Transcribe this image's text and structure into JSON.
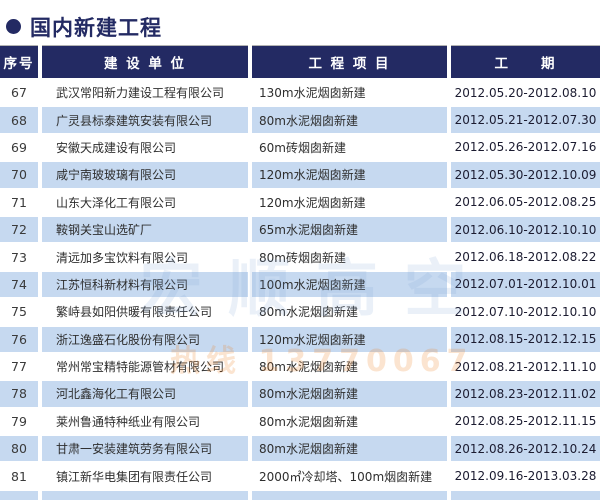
{
  "page": {
    "title": "国内新建工程"
  },
  "colors": {
    "navy": "#232a63",
    "stripe": "#c6d9f0",
    "body_text": "#2e2e2e",
    "date_text": "#1b1b30",
    "header_text": "#ffffff"
  },
  "watermark": {
    "big_text": "宏顺高空",
    "hotline": "热线 13770067"
  },
  "table": {
    "headers": [
      {
        "label": "序号"
      },
      {
        "label": "建 设 单 位"
      },
      {
        "label": "工 程 项 目"
      },
      {
        "label": "工　　期"
      }
    ],
    "rows": [
      {
        "num": "67",
        "company": "武汉常阳新力建设工程有限公司",
        "project": "130m水泥烟囱新建",
        "period": "2012.05.20-2012.08.10"
      },
      {
        "num": "68",
        "company": "广灵县标泰建筑安装有限公司",
        "project": "80m水泥烟囱新建",
        "period": "2012.05.21-2012.07.30"
      },
      {
        "num": "69",
        "company": "安徽天成建设有限公司",
        "project": "60m砖烟囱新建",
        "period": "2012.05.26-2012.07.16"
      },
      {
        "num": "70",
        "company": "咸宁南玻玻璃有限公司",
        "project": "120m水泥烟囱新建",
        "period": "2012.05.30-2012.10.09"
      },
      {
        "num": "71",
        "company": "山东大泽化工有限公司",
        "project": "120m水泥烟囱新建",
        "period": "2012.06.05-2012.08.25"
      },
      {
        "num": "72",
        "company": "鞍钢关宝山选矿厂",
        "project": "65m水泥烟囱新建",
        "period": "2012.06.10-2012.10.10"
      },
      {
        "num": "73",
        "company": "清远加多宝饮料有限公司",
        "project": "80m砖烟囱新建",
        "period": "2012.06.18-2012.08.22"
      },
      {
        "num": "74",
        "company": "江苏恒科新材料有限公司",
        "project": "100m水泥烟囱新建",
        "period": "2012.07.01-2012.10.01"
      },
      {
        "num": "75",
        "company": "繁峙县如阳供暖有限责任公司",
        "project": "80m水泥烟囱新建",
        "period": "2012.07.10-2012.10.10"
      },
      {
        "num": "76",
        "company": "浙江逸盛石化股份有限公司",
        "project": "120m水泥烟囱新建",
        "period": "2012.08.15-2012.12.15"
      },
      {
        "num": "77",
        "company": "常州常宝精特能源管材有限公司",
        "project": "80m水泥烟囱新建",
        "period": "2012.08.21-2012.11.10"
      },
      {
        "num": "78",
        "company": "河北鑫海化工有限公司",
        "project": "80m水泥烟囱新建",
        "period": "2012.08.23-2012.11.02"
      },
      {
        "num": "79",
        "company": "莱州鲁通特种纸业有限公司",
        "project": "80m水泥烟囱新建",
        "period": "2012.08.25-2012.11.15"
      },
      {
        "num": "80",
        "company": "甘肃一安装建筑劳务有限公司",
        "project": "80m水泥烟囱新建",
        "period": "2012.08.26-2012.10.24"
      },
      {
        "num": "81",
        "company": "镇江新华电集团有限责任公司",
        "project": "2000㎡冷却塔、100m烟囱新建",
        "period": "2012.09.16-2013.03.28"
      }
    ]
  }
}
